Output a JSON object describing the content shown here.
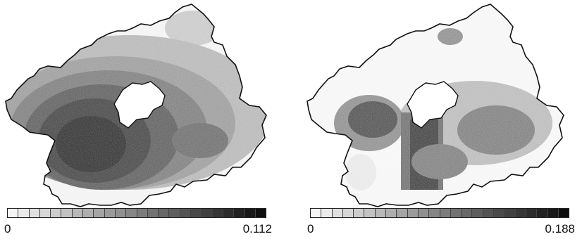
{
  "maps": [
    {
      "id": "left",
      "scale": {
        "min_label": "0",
        "max_label": "0.112",
        "steps": 24
      },
      "colors": {
        "ramp_start": "#f4f4f4",
        "ramp_end": "#0e0e0e",
        "outline": "#111111",
        "hole": "#ffffff"
      }
    },
    {
      "id": "right",
      "scale": {
        "min_label": "0",
        "max_label": "0.188",
        "steps": 24
      },
      "colors": {
        "ramp_start": "#f4f4f4",
        "ramp_end": "#0e0e0e",
        "outline": "#111111",
        "hole": "#ffffff"
      }
    }
  ]
}
